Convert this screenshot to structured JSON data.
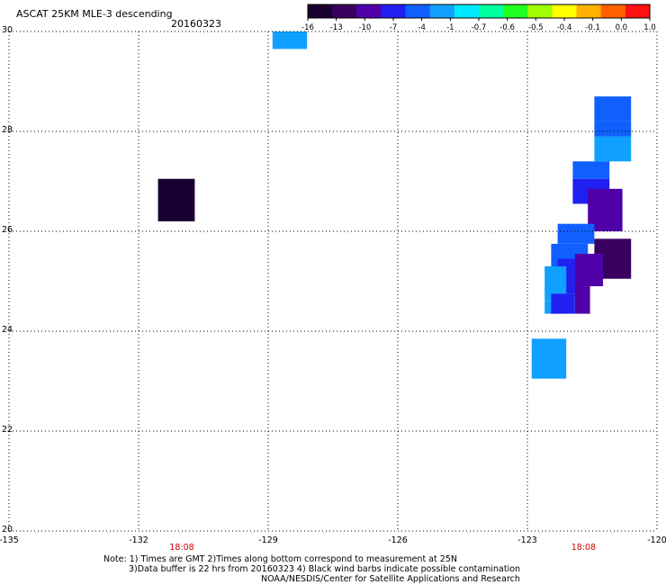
{
  "header": {
    "title": "ASCAT 25KM MLE-3 descending",
    "date": "20160323"
  },
  "colorbar": {
    "labels": [
      "-16",
      "-13",
      "-10",
      "-7",
      "-4",
      "-1",
      "-0.7",
      "-0.6",
      "-0.5",
      "-0.4",
      "-0.1",
      "0.0",
      "1.0"
    ],
    "colors": [
      "#1a0030",
      "#3a0060",
      "#5000a8",
      "#2020f0",
      "#1060ff",
      "#10a0ff",
      "#00e8ff",
      "#00ffa0",
      "#20ff20",
      "#a0ff00",
      "#ffff00",
      "#ffb000",
      "#ff6000",
      "#ff1010"
    ]
  },
  "chart_data": {
    "type": "heatmap",
    "title": "ASCAT 25KM MLE-3 descending",
    "date": "20160323",
    "xlim": [
      -135,
      -120
    ],
    "ylim": [
      20,
      30
    ],
    "xticks": [
      "-135",
      "-132",
      "-129",
      "-126",
      "-123",
      "-120"
    ],
    "yticks": [
      "20",
      "22",
      "24",
      "26",
      "28",
      "30"
    ],
    "grid": true,
    "time_labels": [
      {
        "x": -131,
        "label": "18:08"
      },
      {
        "x": -121.7,
        "label": "18:08"
      }
    ],
    "cells": [
      {
        "lon0": -128.9,
        "lon1": -128.1,
        "lat0": 29.65,
        "lat1": 30.0,
        "value": -1
      },
      {
        "lon0": -131.55,
        "lon1": -130.7,
        "lat0": 26.2,
        "lat1": 27.05,
        "value": -16
      },
      {
        "lon0": -121.45,
        "lon1": -120.6,
        "lat0": 28.2,
        "lat1": 28.7,
        "value": -4
      },
      {
        "lon0": -121.45,
        "lon1": -120.6,
        "lat0": 27.9,
        "lat1": 28.2,
        "value": -4
      },
      {
        "lon0": -121.45,
        "lon1": -120.6,
        "lat0": 27.4,
        "lat1": 27.9,
        "value": -1
      },
      {
        "lon0": -121.95,
        "lon1": -121.1,
        "lat0": 27.05,
        "lat1": 27.4,
        "value": -4
      },
      {
        "lon0": -121.95,
        "lon1": -121.1,
        "lat0": 26.55,
        "lat1": 27.05,
        "value": -7
      },
      {
        "lon0": -121.6,
        "lon1": -120.8,
        "lat0": 26.0,
        "lat1": 26.85,
        "value": -10
      },
      {
        "lon0": -122.3,
        "lon1": -121.45,
        "lat0": 25.75,
        "lat1": 26.15,
        "value": -4
      },
      {
        "lon0": -121.45,
        "lon1": -120.6,
        "lat0": 25.05,
        "lat1": 25.85,
        "value": -13
      },
      {
        "lon0": -122.45,
        "lon1": -121.6,
        "lat0": 25.25,
        "lat1": 25.75,
        "value": -4
      },
      {
        "lon0": -122.3,
        "lon1": -121.7,
        "lat0": 24.75,
        "lat1": 25.45,
        "value": -7
      },
      {
        "lon0": -121.9,
        "lon1": -121.25,
        "lat0": 24.9,
        "lat1": 25.55,
        "value": -10
      },
      {
        "lon0": -122.6,
        "lon1": -122.1,
        "lat0": 24.6,
        "lat1": 25.3,
        "value": -1
      },
      {
        "lon0": -122.6,
        "lon1": -122.1,
        "lat0": 24.35,
        "lat1": 24.6,
        "value": -1
      },
      {
        "lon0": -122.45,
        "lon1": -121.9,
        "lat0": 24.35,
        "lat1": 24.75,
        "value": -7
      },
      {
        "lon0": -121.9,
        "lon1": -121.55,
        "lat0": 24.35,
        "lat1": 24.9,
        "value": -10
      },
      {
        "lon0": -122.9,
        "lon1": -122.1,
        "lat0": 23.05,
        "lat1": 23.85,
        "value": -1
      }
    ]
  },
  "notes": {
    "line1": "Note: 1) Times are GMT 2)Times along bottom correspond to measurement at 25N",
    "line2": "3)Data buffer is 22 hrs from 20160323 4) Black wind barbs indicate possible contamination",
    "line3": "NOAA/NESDIS/Center for Satellite Applications and Research"
  }
}
